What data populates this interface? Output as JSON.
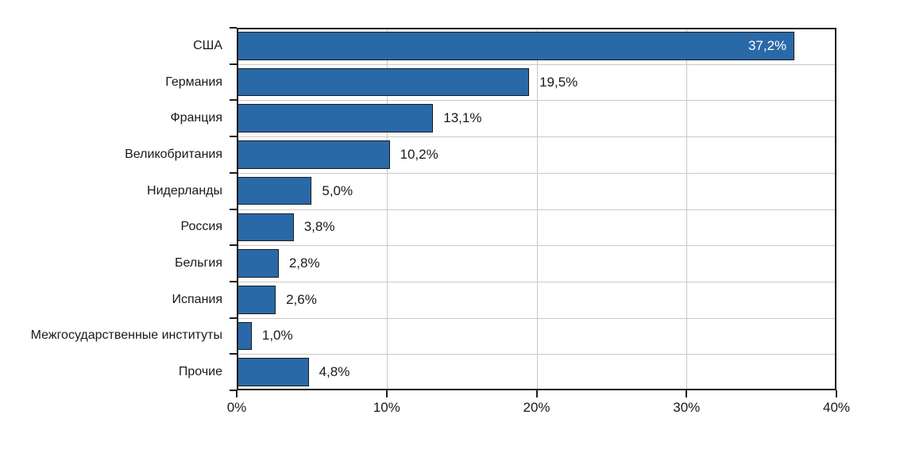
{
  "chart_data": {
    "type": "bar",
    "orientation": "horizontal",
    "title": "",
    "xlabel": "",
    "ylabel": "",
    "categories": [
      "США",
      "Германия",
      "Франция",
      "Великобритания",
      "Нидерланды",
      "Россия",
      "Бельгия",
      "Испания",
      "Межгосударственные институты",
      "Прочие"
    ],
    "values": [
      37.2,
      19.5,
      13.1,
      10.2,
      5.0,
      3.8,
      2.8,
      2.6,
      1.0,
      4.8
    ],
    "value_labels": [
      "37,2%",
      "19,5%",
      "13,1%",
      "10,2%",
      "5,0%",
      "3,8%",
      "2,8%",
      "2,6%",
      "1,0%",
      "4,8%"
    ],
    "label_inside": [
      true,
      false,
      false,
      false,
      false,
      false,
      false,
      false,
      false,
      false
    ],
    "x_ticks": [
      0,
      10,
      20,
      30,
      40
    ],
    "x_tick_labels": [
      "0%",
      "10%",
      "20%",
      "30%",
      "40%"
    ],
    "xlim": [
      0,
      40
    ],
    "grid": true,
    "legend": false,
    "colors": {
      "background": "#FFFFFF",
      "bar_fill": "#2A69A8",
      "bar_border": "#1C1C1C",
      "grid": "#C9C9C9",
      "frame": "#1C1C1C",
      "text": "#1A1A1A",
      "label_inside_color": "#FFFFFF"
    }
  }
}
